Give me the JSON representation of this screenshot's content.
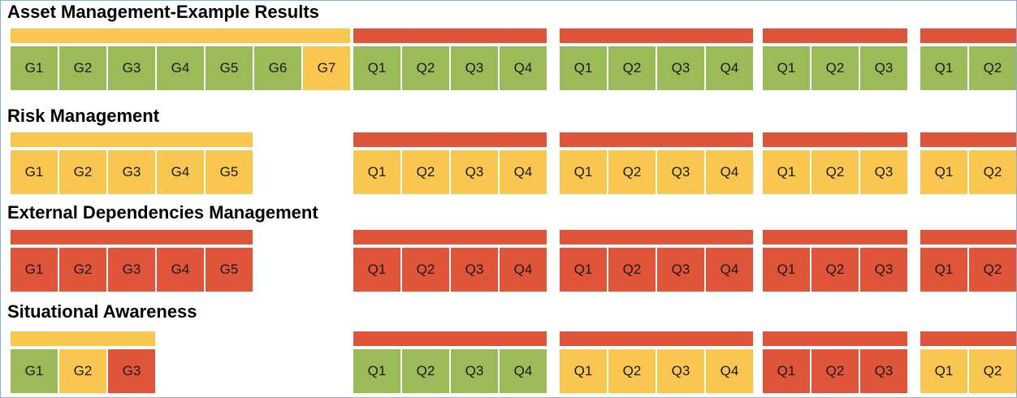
{
  "colors": {
    "green": "#9bbb59",
    "yellow": "#f9c74f",
    "red": "#e0553a"
  },
  "sections": [
    {
      "title": "Asset Management-Example Results",
      "groups": [
        {
          "bar": "yellow",
          "cells": [
            {
              "label": "G1",
              "status": "green"
            },
            {
              "label": "G2",
              "status": "green"
            },
            {
              "label": "G3",
              "status": "green"
            },
            {
              "label": "G4",
              "status": "green"
            },
            {
              "label": "G5",
              "status": "green"
            },
            {
              "label": "G6",
              "status": "green"
            },
            {
              "label": "G7",
              "status": "yellow"
            }
          ]
        },
        {
          "bar": "red",
          "cells": [
            {
              "label": "Q1",
              "status": "green"
            },
            {
              "label": "Q2",
              "status": "green"
            },
            {
              "label": "Q3",
              "status": "green"
            },
            {
              "label": "Q4",
              "status": "green"
            }
          ]
        },
        {
          "bar": "red",
          "cells": [
            {
              "label": "Q1",
              "status": "green"
            },
            {
              "label": "Q2",
              "status": "green"
            },
            {
              "label": "Q3",
              "status": "green"
            },
            {
              "label": "Q4",
              "status": "green"
            }
          ]
        },
        {
          "bar": "red",
          "cells": [
            {
              "label": "Q1",
              "status": "green"
            },
            {
              "label": "Q2",
              "status": "green"
            },
            {
              "label": "Q3",
              "status": "green"
            }
          ]
        },
        {
          "bar": "red",
          "cells": [
            {
              "label": "Q1",
              "status": "green"
            },
            {
              "label": "Q2",
              "status": "green"
            }
          ]
        }
      ]
    },
    {
      "title": "Risk Management",
      "groups": [
        {
          "bar": "yellow",
          "cells": [
            {
              "label": "G1",
              "status": "yellow"
            },
            {
              "label": "G2",
              "status": "yellow"
            },
            {
              "label": "G3",
              "status": "yellow"
            },
            {
              "label": "G4",
              "status": "yellow"
            },
            {
              "label": "G5",
              "status": "yellow"
            }
          ]
        },
        {
          "bar": "red",
          "cells": [
            {
              "label": "Q1",
              "status": "yellow"
            },
            {
              "label": "Q2",
              "status": "yellow"
            },
            {
              "label": "Q3",
              "status": "yellow"
            },
            {
              "label": "Q4",
              "status": "yellow"
            }
          ]
        },
        {
          "bar": "red",
          "cells": [
            {
              "label": "Q1",
              "status": "yellow"
            },
            {
              "label": "Q2",
              "status": "yellow"
            },
            {
              "label": "Q3",
              "status": "yellow"
            },
            {
              "label": "Q4",
              "status": "yellow"
            }
          ]
        },
        {
          "bar": "red",
          "cells": [
            {
              "label": "Q1",
              "status": "yellow"
            },
            {
              "label": "Q2",
              "status": "yellow"
            },
            {
              "label": "Q3",
              "status": "yellow"
            }
          ]
        },
        {
          "bar": "red",
          "cells": [
            {
              "label": "Q1",
              "status": "yellow"
            },
            {
              "label": "Q2",
              "status": "yellow"
            }
          ]
        }
      ]
    },
    {
      "title": "External Dependencies Management",
      "groups": [
        {
          "bar": "red",
          "cells": [
            {
              "label": "G1",
              "status": "red"
            },
            {
              "label": "G2",
              "status": "red"
            },
            {
              "label": "G3",
              "status": "red"
            },
            {
              "label": "G4",
              "status": "red"
            },
            {
              "label": "G5",
              "status": "red"
            }
          ]
        },
        {
          "bar": "red",
          "cells": [
            {
              "label": "Q1",
              "status": "red"
            },
            {
              "label": "Q2",
              "status": "red"
            },
            {
              "label": "Q3",
              "status": "red"
            },
            {
              "label": "Q4",
              "status": "red"
            }
          ]
        },
        {
          "bar": "red",
          "cells": [
            {
              "label": "Q1",
              "status": "red"
            },
            {
              "label": "Q2",
              "status": "red"
            },
            {
              "label": "Q3",
              "status": "red"
            },
            {
              "label": "Q4",
              "status": "red"
            }
          ]
        },
        {
          "bar": "red",
          "cells": [
            {
              "label": "Q1",
              "status": "red"
            },
            {
              "label": "Q2",
              "status": "red"
            },
            {
              "label": "Q3",
              "status": "red"
            }
          ]
        },
        {
          "bar": "red",
          "cells": [
            {
              "label": "Q1",
              "status": "red"
            },
            {
              "label": "Q2",
              "status": "red"
            }
          ]
        }
      ]
    },
    {
      "title": "Situational Awareness",
      "groups": [
        {
          "bar": "yellow",
          "cells": [
            {
              "label": "G1",
              "status": "green"
            },
            {
              "label": "G2",
              "status": "yellow"
            },
            {
              "label": "G3",
              "status": "red"
            }
          ]
        },
        {
          "bar": "red",
          "cells": [
            {
              "label": "Q1",
              "status": "green"
            },
            {
              "label": "Q2",
              "status": "green"
            },
            {
              "label": "Q3",
              "status": "green"
            },
            {
              "label": "Q4",
              "status": "green"
            }
          ]
        },
        {
          "bar": "red",
          "cells": [
            {
              "label": "Q1",
              "status": "yellow"
            },
            {
              "label": "Q2",
              "status": "yellow"
            },
            {
              "label": "Q3",
              "status": "yellow"
            },
            {
              "label": "Q4",
              "status": "yellow"
            }
          ]
        },
        {
          "bar": "red",
          "cells": [
            {
              "label": "Q1",
              "status": "red"
            },
            {
              "label": "Q2",
              "status": "red"
            },
            {
              "label": "Q3",
              "status": "red"
            }
          ]
        },
        {
          "bar": "red",
          "cells": [
            {
              "label": "Q1",
              "status": "yellow"
            },
            {
              "label": "Q2",
              "status": "yellow"
            }
          ]
        }
      ]
    }
  ]
}
